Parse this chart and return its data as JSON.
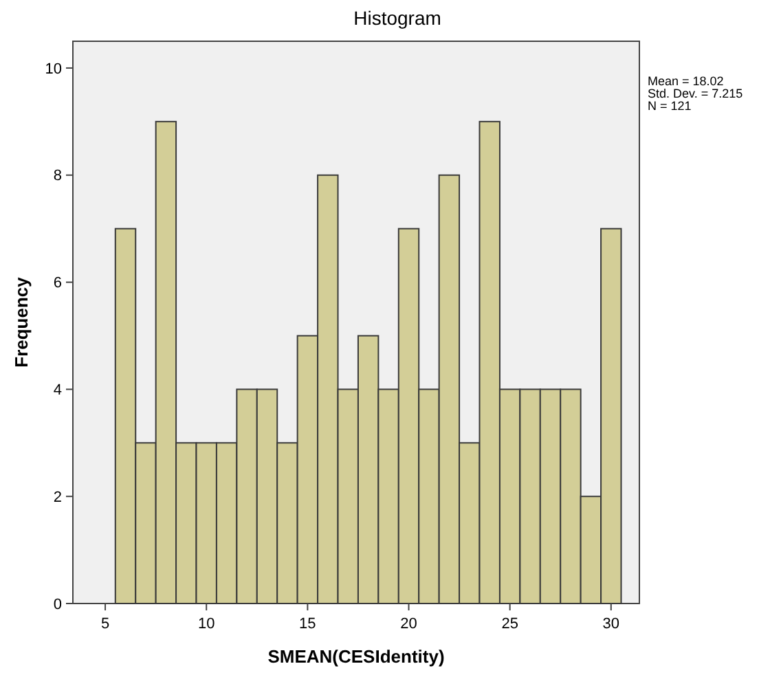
{
  "chart_data": {
    "type": "histogram",
    "title": "Histogram",
    "xlabel": "SMEAN(CESIdentity)",
    "ylabel": "Frequency",
    "bins": [
      5.5,
      6.5,
      7.5,
      8.5,
      9.5,
      10.5,
      11.5,
      12.5,
      13.5,
      14.5,
      15.5,
      16.5,
      17.5,
      18.5,
      19.5,
      20.5,
      21.5,
      22.5,
      23.5,
      24.5,
      25.5,
      26.5,
      27.5,
      28.5,
      29.5,
      30.5
    ],
    "values": [
      7,
      3,
      9,
      3,
      3,
      3,
      4,
      4,
      3,
      5,
      8,
      4,
      5,
      4,
      7,
      4,
      8,
      3,
      9,
      4,
      4,
      4,
      4,
      2,
      7
    ],
    "color": "#d3ce97",
    "xlim": [
      3.4,
      31.4
    ],
    "xticks": [
      5,
      10,
      15,
      20,
      25,
      30
    ],
    "ylim": [
      0,
      10.5
    ],
    "yticks": [
      0,
      2,
      4,
      6,
      8,
      10
    ],
    "grid": false,
    "annotations": [
      "Mean = 18.02",
      "Std. Dev. = 7.215",
      "N = 121"
    ]
  }
}
